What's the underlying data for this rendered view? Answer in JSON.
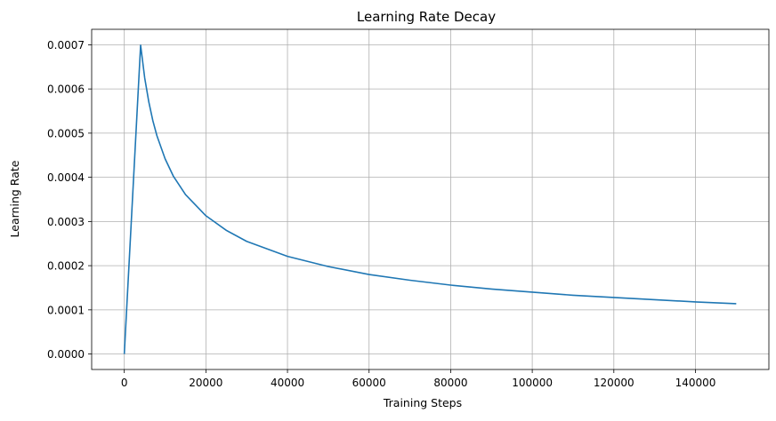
{
  "chart_data": {
    "type": "line",
    "title": "Learning Rate Decay",
    "xlabel": "Training Steps",
    "ylabel": "Learning Rate",
    "xlim": [
      -8000,
      158000
    ],
    "ylim": [
      -3.5e-05,
      0.000735
    ],
    "grid": true,
    "xticks": [
      0,
      20000,
      40000,
      60000,
      80000,
      100000,
      120000,
      140000
    ],
    "xtick_labels": [
      "0",
      "20000",
      "40000",
      "60000",
      "80000",
      "100000",
      "120000",
      "140000"
    ],
    "yticks": [
      0.0,
      0.0001,
      0.0002,
      0.0003,
      0.0004,
      0.0005,
      0.0006,
      0.0007
    ],
    "ytick_labels": [
      "0.0000",
      "0.0001",
      "0.0002",
      "0.0003",
      "0.0004",
      "0.0005",
      "0.0006",
      "0.0007"
    ],
    "series": [
      {
        "color": "#1f77b4",
        "x": [
          0,
          4000,
          5000,
          6000,
          7000,
          8000,
          10000,
          12000,
          15000,
          20000,
          25000,
          30000,
          40000,
          50000,
          60000,
          70000,
          80000,
          90000,
          100000,
          110000,
          120000,
          130000,
          140000,
          150000
        ],
        "y": [
          0.0,
          0.000699,
          0.000625,
          0.000571,
          0.000528,
          0.000494,
          0.000442,
          0.000403,
          0.000361,
          0.000313,
          0.00028,
          0.000255,
          0.000221,
          0.000198,
          0.00018,
          0.000167,
          0.000156,
          0.000147,
          0.00014,
          0.000133,
          0.000128,
          0.000123,
          0.000118,
          0.000114
        ]
      }
    ]
  }
}
